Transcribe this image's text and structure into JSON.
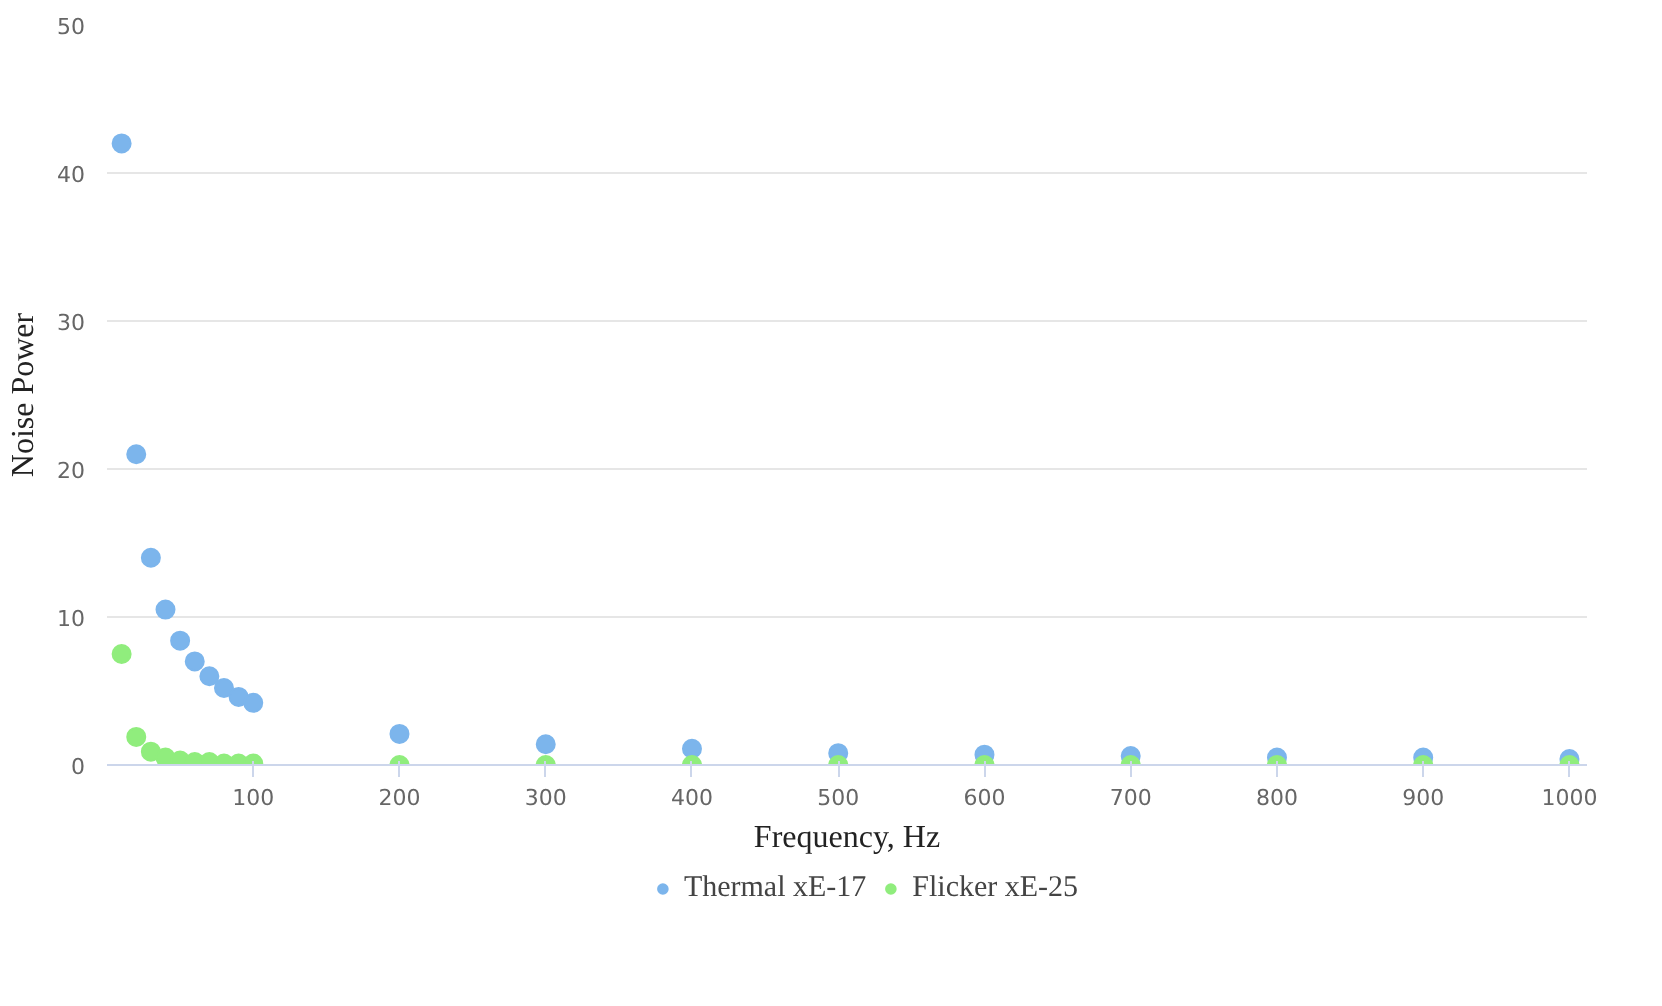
{
  "chart_data": {
    "type": "scatter",
    "xlabel": "Frequency, Hz",
    "ylabel": "Noise Power",
    "x": [
      10,
      20,
      30,
      40,
      50,
      60,
      70,
      80,
      90,
      100,
      200,
      300,
      400,
      500,
      600,
      700,
      800,
      900,
      1000
    ],
    "series": [
      {
        "name": "Thermal xE-17",
        "color": "#7cb5ec",
        "values": [
          42,
          21,
          14,
          10.5,
          8.4,
          7,
          6,
          5.2,
          4.6,
          4.2,
          2.1,
          1.4,
          1.1,
          0.8,
          0.7,
          0.6,
          0.5,
          0.5,
          0.4
        ]
      },
      {
        "name": "Flicker xE-25",
        "color": "#90ed7d",
        "values": [
          7.5,
          1.9,
          0.9,
          0.5,
          0.3,
          0.2,
          0.2,
          0.1,
          0.1,
          0.1,
          0,
          0,
          0,
          0,
          0,
          0,
          0,
          0,
          0
        ]
      }
    ],
    "xlim": [
      0,
      1012
    ],
    "ylim": [
      0,
      50
    ],
    "xticks": [
      100,
      200,
      300,
      400,
      500,
      600,
      700,
      800,
      900,
      1000
    ],
    "yticks": [
      0,
      10,
      20,
      30,
      40,
      50
    ],
    "grid": "y",
    "legend": "bottom",
    "marker": "circle"
  }
}
